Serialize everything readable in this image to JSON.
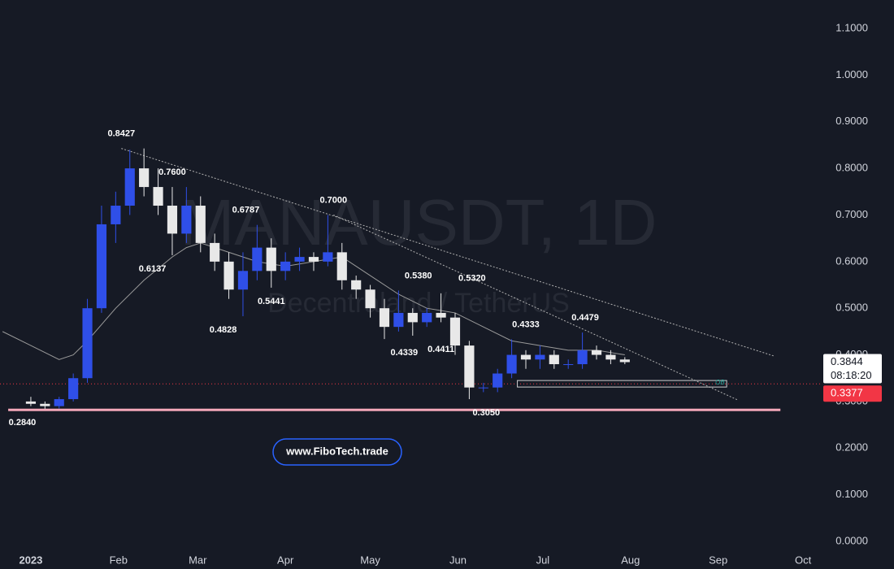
{
  "chart_data": {
    "type": "candlestick",
    "title": "MANAUSDT, 1D",
    "subtitle": "Decentraland / TetherUS",
    "x": [
      0,
      5,
      10,
      15,
      20,
      25,
      30,
      35,
      40,
      45,
      50,
      55,
      60,
      65,
      70,
      75,
      80,
      85,
      90,
      95,
      100,
      105,
      110,
      115,
      120,
      125,
      130,
      135,
      140,
      145,
      150,
      155,
      160,
      165,
      170,
      175,
      180,
      185,
      190,
      195,
      200,
      205,
      210
    ],
    "open": [
      0.3,
      0.295,
      0.29,
      0.305,
      0.35,
      0.5,
      0.68,
      0.72,
      0.8,
      0.76,
      0.72,
      0.66,
      0.72,
      0.64,
      0.6,
      0.54,
      0.58,
      0.63,
      0.58,
      0.6,
      0.61,
      0.6,
      0.62,
      0.56,
      0.54,
      0.5,
      0.46,
      0.49,
      0.47,
      0.49,
      0.48,
      0.42,
      0.33,
      0.33,
      0.36,
      0.4,
      0.39,
      0.4,
      0.38,
      0.38,
      0.41,
      0.4,
      0.39
    ],
    "high": [
      0.31,
      0.3,
      0.31,
      0.36,
      0.52,
      0.72,
      0.75,
      0.84,
      0.8427,
      0.8,
      0.76,
      0.76,
      0.74,
      0.66,
      0.62,
      0.62,
      0.6787,
      0.65,
      0.62,
      0.63,
      0.62,
      0.7,
      0.64,
      0.57,
      0.55,
      0.52,
      0.538,
      0.5,
      0.5,
      0.532,
      0.49,
      0.43,
      0.34,
      0.37,
      0.4333,
      0.41,
      0.42,
      0.41,
      0.39,
      0.4479,
      0.42,
      0.41,
      0.395
    ],
    "low": [
      0.29,
      0.284,
      0.285,
      0.3,
      0.34,
      0.49,
      0.64,
      0.7,
      0.74,
      0.7,
      0.6137,
      0.64,
      0.62,
      0.58,
      0.52,
      0.4828,
      0.56,
      0.5441,
      0.56,
      0.58,
      0.58,
      0.59,
      0.54,
      0.52,
      0.48,
      0.4339,
      0.45,
      0.4411,
      0.46,
      0.47,
      0.4,
      0.305,
      0.32,
      0.32,
      0.35,
      0.37,
      0.37,
      0.37,
      0.37,
      0.37,
      0.39,
      0.38,
      0.38
    ],
    "close": [
      0.295,
      0.29,
      0.305,
      0.35,
      0.5,
      0.68,
      0.72,
      0.8,
      0.76,
      0.72,
      0.66,
      0.72,
      0.64,
      0.6,
      0.54,
      0.58,
      0.63,
      0.58,
      0.6,
      0.61,
      0.6,
      0.62,
      0.56,
      0.54,
      0.5,
      0.46,
      0.49,
      0.47,
      0.49,
      0.48,
      0.42,
      0.33,
      0.33,
      0.36,
      0.4,
      0.39,
      0.4,
      0.38,
      0.38,
      0.41,
      0.4,
      0.39,
      0.3844
    ],
    "up_color": "#2f4fe8",
    "down_color": "#e8e8e8",
    "moving_average": {
      "color": "#9a9a9a",
      "x": [
        -10,
        0,
        10,
        15,
        20,
        30,
        40,
        50,
        55,
        60,
        70,
        80,
        90,
        100,
        110,
        115,
        120,
        130,
        140,
        150,
        160,
        170,
        180,
        190,
        200,
        210
      ],
      "values": [
        0.45,
        0.42,
        0.39,
        0.4,
        0.43,
        0.5,
        0.56,
        0.61,
        0.63,
        0.64,
        0.62,
        0.6,
        0.59,
        0.6,
        0.61,
        0.59,
        0.57,
        0.53,
        0.5,
        0.49,
        0.46,
        0.43,
        0.42,
        0.41,
        0.41,
        0.4
      ]
    },
    "trendlines": [
      {
        "x": [
          32,
          263
        ],
        "values": [
          0.8427,
          0.397
        ],
        "color": "#b0b0b0"
      },
      {
        "x": [
          107,
          250
        ],
        "values": [
          0.7,
          0.303
        ],
        "color": "#b0b0b0"
      }
    ],
    "support": {
      "x": [
        -8,
        265
      ],
      "values": [
        0.282,
        0.282
      ],
      "color": "#f4a7b9"
    },
    "marker_price": {
      "value": 0.3377,
      "label": "0.3377",
      "color": "#f23645"
    },
    "last_price": {
      "value": 0.3844,
      "label": "0.3844"
    },
    "countdown": "08:18:20",
    "order_block": {
      "label": "OB",
      "x": [
        172,
        246
      ],
      "top": 0.345,
      "bottom": 0.331,
      "color": "#26a69a"
    },
    "annotations": [
      {
        "x": 32,
        "value": 0.8427,
        "label": "0.8427",
        "position": "above"
      },
      {
        "x": 50,
        "value": 0.76,
        "label": "0.7600",
        "position": "above"
      },
      {
        "x": 76,
        "value": 0.6787,
        "label": "0.6787",
        "position": "above"
      },
      {
        "x": 43,
        "value": 0.6137,
        "label": "0.6137",
        "position": "below"
      },
      {
        "x": 85,
        "value": 0.5441,
        "label": "0.5441",
        "position": "below"
      },
      {
        "x": 68,
        "value": 0.4828,
        "label": "0.4828",
        "position": "below"
      },
      {
        "x": 107,
        "value": 0.7,
        "label": "0.7000",
        "position": "above"
      },
      {
        "x": 137,
        "value": 0.538,
        "label": "0.5380",
        "position": "above"
      },
      {
        "x": 156,
        "value": 0.532,
        "label": "0.5320",
        "position": "above"
      },
      {
        "x": 132,
        "value": 0.4339,
        "label": "0.4339",
        "position": "below"
      },
      {
        "x": 145,
        "value": 0.4411,
        "label": "0.4411",
        "position": "below"
      },
      {
        "x": 175,
        "value": 0.4333,
        "label": "0.4333",
        "position": "above"
      },
      {
        "x": 196,
        "value": 0.4479,
        "label": "0.4479",
        "position": "above"
      },
      {
        "x": 161,
        "value": 0.305,
        "label": "0.3050",
        "position": "below"
      },
      {
        "x": -3,
        "value": 0.284,
        "label": "0.2840",
        "position": "below"
      }
    ],
    "ylim": [
      -0.0593,
      1.1611
    ],
    "yticks": [
      {
        "value": 0,
        "label": "0.0000"
      },
      {
        "value": 0.1,
        "label": "0.1000"
      },
      {
        "value": 0.2,
        "label": "0.2000"
      },
      {
        "value": 0.3,
        "label": "0.3000"
      },
      {
        "value": 0.4,
        "label": "0.4000"
      },
      {
        "value": 0.5,
        "label": "0.5000"
      },
      {
        "value": 0.6,
        "label": "0.6000"
      },
      {
        "value": 0.7,
        "label": "0.7000"
      },
      {
        "value": 0.8,
        "label": "0.8000"
      },
      {
        "value": 0.9,
        "label": "0.9000"
      },
      {
        "value": 1,
        "label": "1.0000"
      },
      {
        "value": 1.1,
        "label": "1.1000"
      }
    ],
    "xlim": [
      -10.9,
      279.3
    ],
    "xticks": [
      {
        "value": 0,
        "label": "2023"
      },
      {
        "value": 31,
        "label": "Feb"
      },
      {
        "value": 59,
        "label": "Mar"
      },
      {
        "value": 90,
        "label": "Apr"
      },
      {
        "value": 120,
        "label": "May"
      },
      {
        "value": 151,
        "label": "Jun"
      },
      {
        "value": 181,
        "label": "Jul"
      },
      {
        "value": 212,
        "label": "Aug"
      },
      {
        "value": 243,
        "label": "Sep"
      },
      {
        "value": 273,
        "label": "Oct"
      }
    ],
    "link": "www.FiboTech.trade"
  }
}
